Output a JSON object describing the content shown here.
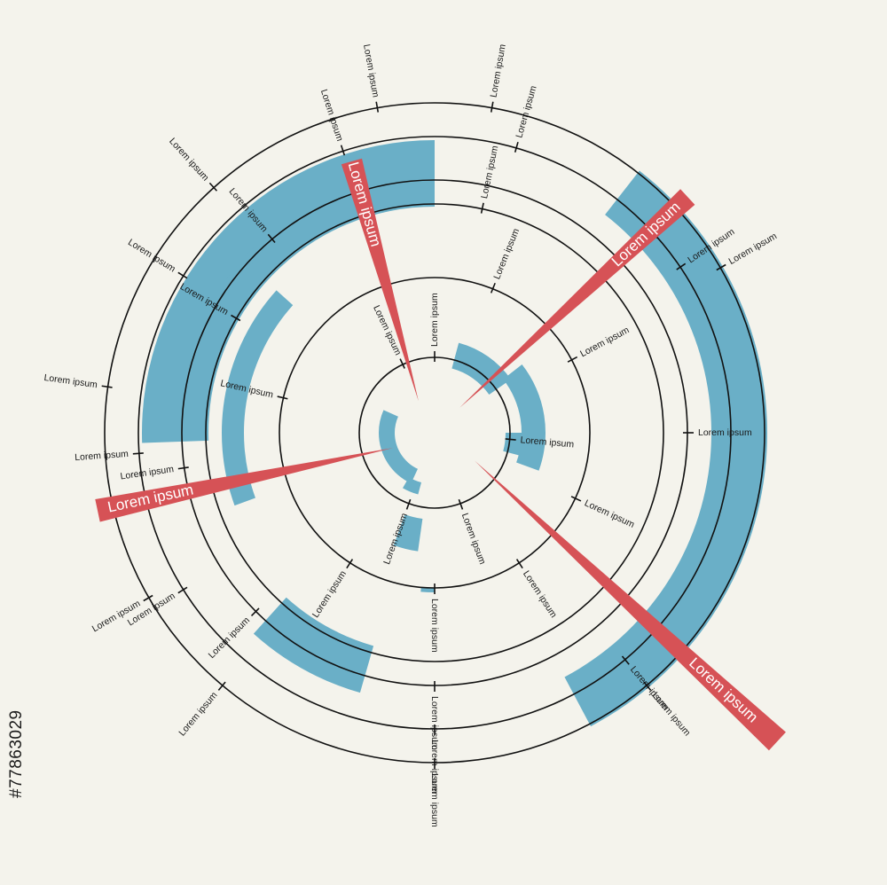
{
  "stock_id": "#77863029",
  "colors": {
    "background": "#f4f3ec",
    "ring": "#111111",
    "segment": "#6aafc7",
    "flag": "#d65256",
    "flag_text": "#ffffff"
  },
  "tick_labels": [
    {
      "text": "Lorem ipsum"
    },
    {
      "text": "Lorem ipsum"
    },
    {
      "text": "Lorem ipsum"
    },
    {
      "text": "Lorem ipsum"
    },
    {
      "text": "Lorem ipsum"
    },
    {
      "text": "Lorem ipsum"
    },
    {
      "text": "Lorem ipsum"
    },
    {
      "text": "Lorem ipsum"
    },
    {
      "text": "Lorem ipsum"
    },
    {
      "text": "Lorem ipsum"
    },
    {
      "text": "Lorem ipsum"
    },
    {
      "text": "Lorem ipsum"
    },
    {
      "text": "Lorem ipsum"
    },
    {
      "text": "Lorem ipsum"
    },
    {
      "text": "Lorem ipsum"
    },
    {
      "text": "Lorem ipsum"
    },
    {
      "text": "Lorem ipsum"
    },
    {
      "text": "Lorem ipsum"
    },
    {
      "text": "Lorem ipsum"
    },
    {
      "text": "Lorem ipsum"
    },
    {
      "text": "Lorem ipsum"
    },
    {
      "text": "Lorem ipsum"
    },
    {
      "text": "Lorem ipsum"
    },
    {
      "text": "Lorem ipsum"
    },
    {
      "text": "Lorem ipsum"
    },
    {
      "text": "Lorem ipsum"
    },
    {
      "text": "Lorem ipsum"
    },
    {
      "text": "Lorem ipsum"
    },
    {
      "text": "Lorem ipsum"
    },
    {
      "text": "Lorem ipsum"
    },
    {
      "text": "Lorem ipsum"
    },
    {
      "text": "Lorem ipsum"
    },
    {
      "text": "Lorem ipsum"
    },
    {
      "text": "Lorem ipsum"
    },
    {
      "text": "Lorem ipsum"
    },
    {
      "text": "Lorem ipsum"
    },
    {
      "text": "Lorem ipsum"
    }
  ],
  "flags": [
    {
      "text": "Lorem ipsum"
    },
    {
      "text": "Lorem ipsum"
    },
    {
      "text": "Lorem ipsum"
    },
    {
      "text": "Lorem ipsum"
    }
  ]
}
